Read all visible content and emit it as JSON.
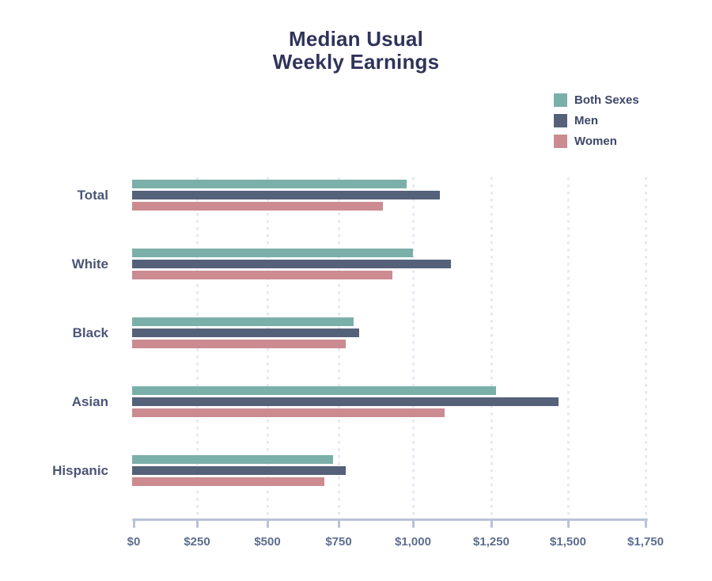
{
  "title_lines": {
    "line1": "Median Usual",
    "line2": "Weekly Earnings"
  },
  "chart_data": {
    "type": "bar",
    "orientation": "horizontal",
    "title": "Median Usual Weekly Earnings",
    "unit": "USD",
    "categories": [
      "Total",
      "White",
      "Black",
      "Asian",
      "Hispanic"
    ],
    "series": [
      {
        "name": "Both Sexes",
        "color": "#7bafa9",
        "values": [
          980,
          1000,
          800,
          1265,
          730
        ]
      },
      {
        "name": "Men",
        "color": "#556179",
        "values": [
          1085,
          1120,
          820,
          1470,
          775
        ]
      },
      {
        "name": "Women",
        "color": "#cb8b91",
        "values": [
          900,
          930,
          775,
          1100,
          700
        ]
      }
    ],
    "x_axis": {
      "min": 0,
      "max": 1750,
      "tick_interval": 250,
      "tick_labels": [
        "$0",
        "$250",
        "$500",
        "$750",
        "$1,000",
        "$1,250",
        "$1,500",
        "$1,750"
      ]
    },
    "legend_position": "top-right",
    "grid": "vertical-dotted"
  },
  "colors": {
    "title_text": "#30345a",
    "legend_text": "#3d4768",
    "category_text": "#4c5578",
    "axis_line": "#b8c3d8",
    "axis_text": "#5d6d8e",
    "gridline": "#e7e9f3",
    "background": "#ffffff"
  }
}
